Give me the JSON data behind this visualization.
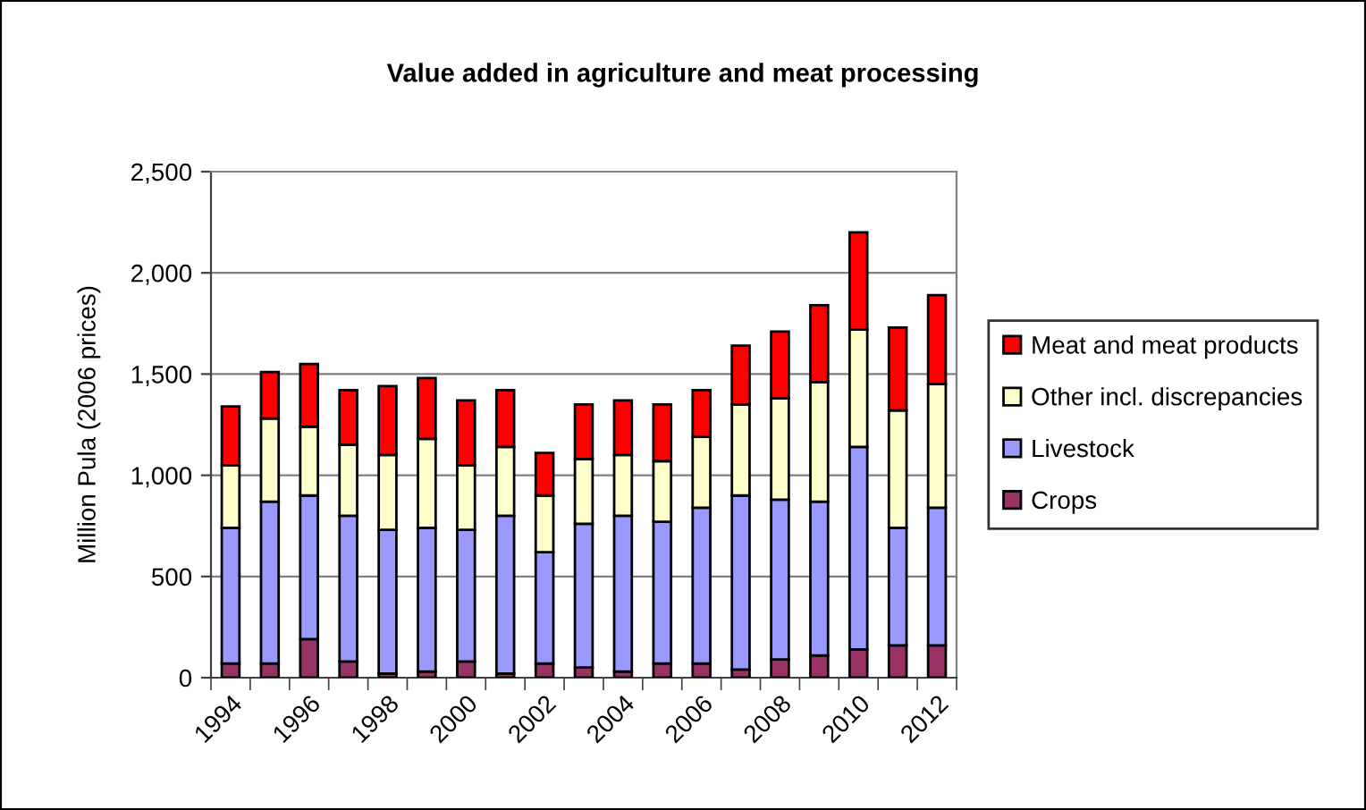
{
  "chart_data": {
    "type": "bar",
    "title": "Value added in agriculture and meat processing",
    "ylabel": "Million Pula (2006 prices)",
    "categories": [
      "1994",
      null,
      "1996",
      null,
      "1998",
      null,
      "2000",
      null,
      "2002",
      null,
      "2004",
      null,
      "2006",
      null,
      "2008",
      null,
      "2010",
      null,
      "2012"
    ],
    "stacked": true,
    "series": [
      {
        "name": "Crops",
        "color": "#993366",
        "values": [
          70,
          70,
          190,
          80,
          20,
          30,
          80,
          20,
          70,
          50,
          30,
          70,
          70,
          40,
          90,
          110,
          140,
          160,
          160
        ]
      },
      {
        "name": "Livestock",
        "color": "#9999ff",
        "values": [
          670,
          800,
          710,
          720,
          710,
          710,
          650,
          780,
          550,
          710,
          770,
          700,
          770,
          860,
          790,
          760,
          1000,
          580,
          680
        ]
      },
      {
        "name": "Other incl. discrepancies",
        "color": "#ffffcc",
        "values": [
          310,
          410,
          340,
          350,
          370,
          440,
          320,
          340,
          280,
          320,
          300,
          300,
          350,
          450,
          500,
          590,
          580,
          580,
          610
        ]
      },
      {
        "name": "Meat and meat products",
        "color": "#ff0000",
        "values": [
          290,
          230,
          310,
          270,
          340,
          300,
          320,
          280,
          210,
          270,
          270,
          280,
          230,
          290,
          330,
          380,
          480,
          410,
          440
        ]
      }
    ],
    "ylim": [
      0,
      2500
    ],
    "yticks": [
      0,
      500,
      {
        "value": 1000,
        "label": "1,000"
      },
      {
        "value": 1500,
        "label": "1,500"
      },
      {
        "value": 2000,
        "label": "2,000"
      },
      {
        "value": 2500,
        "label": "2,500"
      }
    ],
    "grid": "y",
    "legend": "right"
  }
}
